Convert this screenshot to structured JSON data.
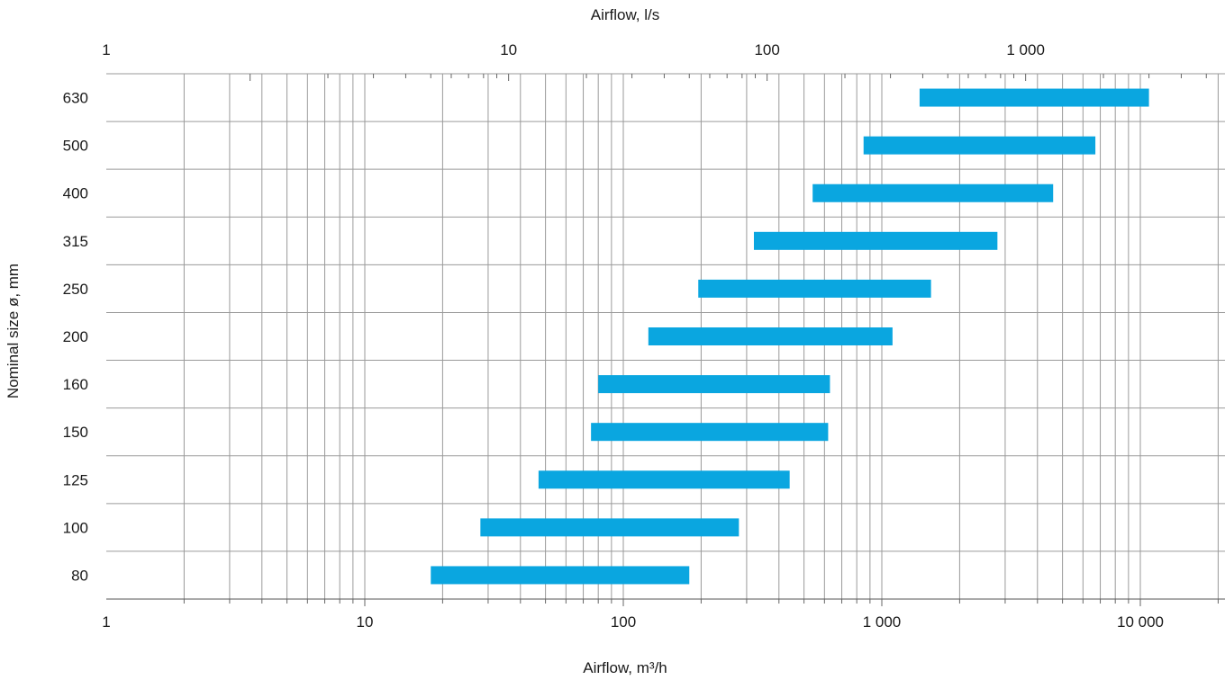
{
  "chart_data": {
    "type": "bar",
    "orientation": "horizontal",
    "bar_color": "#0aa6e0",
    "grid": true,
    "x_scale": "log",
    "x_bottom": {
      "label": "Airflow, m³/h",
      "range": [
        1,
        30000
      ],
      "ticks": [
        1,
        10,
        100,
        1000,
        10000
      ],
      "tick_labels": [
        "1",
        "10",
        "100",
        "1 000",
        "10 000"
      ]
    },
    "x_top": {
      "label": "Airflow, l/s",
      "ticks": [
        1,
        10,
        100,
        1000
      ],
      "tick_labels": [
        "1",
        "10",
        "100",
        "1 000"
      ]
    },
    "ylabel": "Nominal size ø, mm",
    "categories": [
      "630",
      "500",
      "400",
      "315",
      "250",
      "200",
      "160",
      "150",
      "125",
      "100",
      "80"
    ],
    "ranges_m3h": [
      [
        1400,
        10800
      ],
      [
        850,
        6700
      ],
      [
        540,
        4600
      ],
      [
        320,
        2800
      ],
      [
        195,
        1550
      ],
      [
        125,
        1100
      ],
      [
        80,
        630
      ],
      [
        75,
        620
      ],
      [
        47,
        440
      ],
      [
        28,
        280
      ],
      [
        18,
        180
      ]
    ]
  }
}
